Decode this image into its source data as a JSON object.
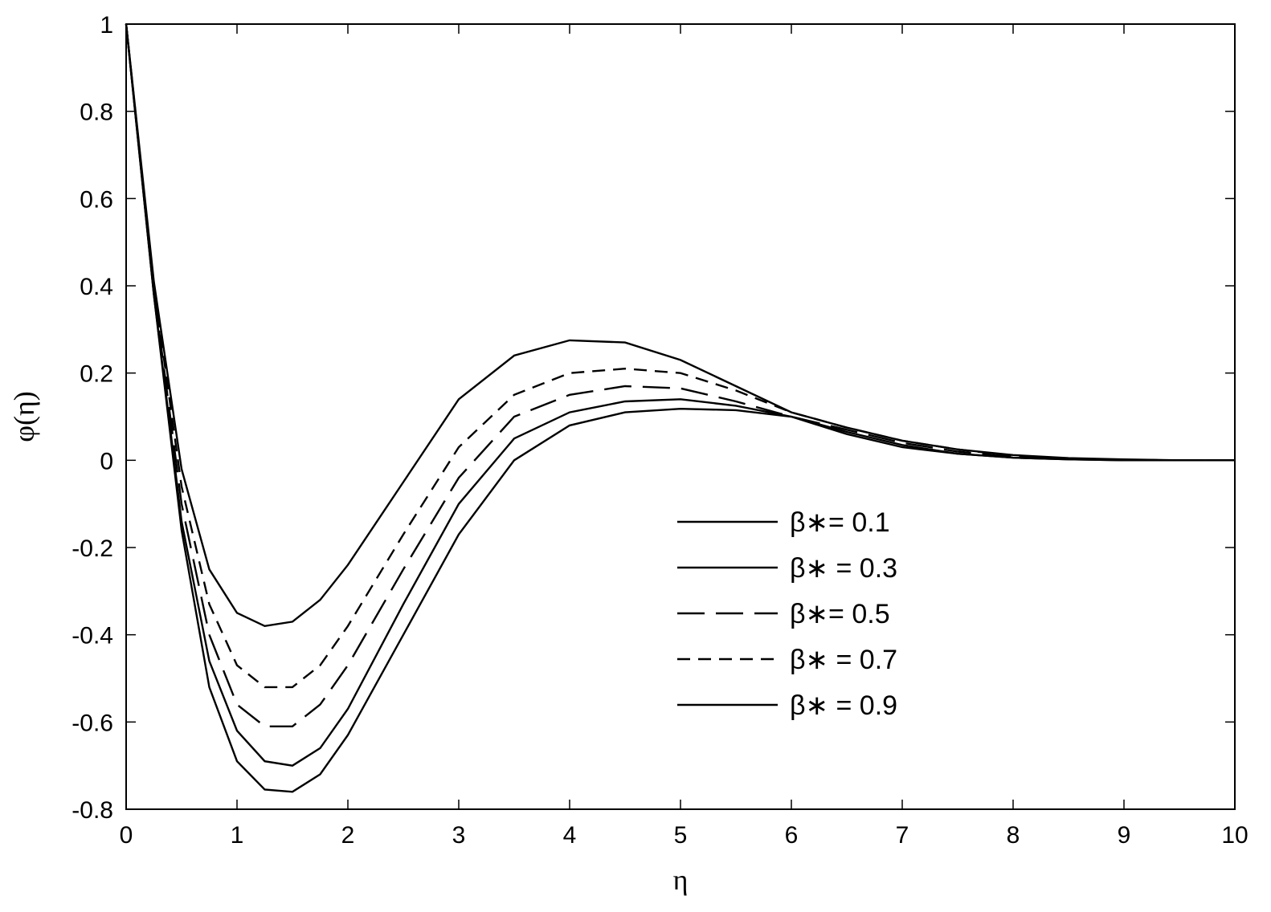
{
  "chart_data": {
    "type": "line",
    "title": "",
    "xlabel": "η",
    "ylabel": "φ(η)",
    "xlim": [
      0,
      10
    ],
    "ylim": [
      -0.8,
      1
    ],
    "xticks": [
      0,
      1,
      2,
      3,
      4,
      5,
      6,
      7,
      8,
      9,
      10
    ],
    "xtick_labels": [
      "0",
      "1",
      "2",
      "3",
      "4",
      "5",
      "6",
      "7",
      "8",
      "9",
      "10"
    ],
    "yticks": [
      -0.8,
      -0.6,
      -0.4,
      -0.2,
      0,
      0.2,
      0.4,
      0.6,
      0.8,
      1
    ],
    "ytick_labels": [
      "-0.8",
      "-0.6",
      "-0.4",
      "-0.2",
      "0",
      "0.2",
      "0.4",
      "0.6",
      "0.8",
      "1"
    ],
    "grid": false,
    "legend_position": "lower-right",
    "colors": {
      "line": "#000000",
      "axes": "#000000",
      "background": "#ffffff"
    },
    "series": [
      {
        "name": "β∗= 0.1",
        "dash": "solid",
        "x": [
          0,
          0.25,
          0.5,
          0.75,
          1.0,
          1.25,
          1.5,
          1.75,
          2.0,
          2.5,
          3.0,
          3.5,
          4.0,
          4.5,
          5.0,
          5.5,
          6.0,
          6.5,
          7.0,
          7.5,
          8.0,
          8.5,
          9.0,
          9.5,
          10.0
        ],
        "y": [
          1.0,
          0.38,
          -0.16,
          -0.52,
          -0.69,
          -0.755,
          -0.76,
          -0.72,
          -0.63,
          -0.4,
          -0.17,
          0.0,
          0.08,
          0.11,
          0.118,
          0.115,
          0.1,
          0.06,
          0.03,
          0.015,
          0.006,
          0.002,
          0.0,
          0.0,
          0.0
        ]
      },
      {
        "name": "β∗ = 0.3",
        "dash": "solid",
        "x": [
          0,
          0.25,
          0.5,
          0.75,
          1.0,
          1.25,
          1.5,
          1.75,
          2.0,
          2.5,
          3.0,
          3.5,
          4.0,
          4.5,
          5.0,
          5.5,
          6.0,
          6.5,
          7.0,
          7.5,
          8.0,
          8.5,
          9.0,
          9.5,
          10.0
        ],
        "y": [
          1.0,
          0.38,
          -0.14,
          -0.46,
          -0.62,
          -0.69,
          -0.7,
          -0.66,
          -0.57,
          -0.33,
          -0.1,
          0.05,
          0.11,
          0.135,
          0.14,
          0.125,
          0.1,
          0.065,
          0.035,
          0.015,
          0.006,
          0.002,
          0.0,
          0.0,
          0.0
        ]
      },
      {
        "name": "β∗= 0.5",
        "dash": "longdash",
        "x": [
          0,
          0.25,
          0.5,
          0.75,
          1.0,
          1.25,
          1.5,
          1.75,
          2.0,
          2.5,
          3.0,
          3.5,
          4.0,
          4.5,
          5.0,
          5.5,
          6.0,
          6.5,
          7.0,
          7.5,
          8.0,
          8.5,
          9.0,
          9.5,
          10.0
        ],
        "y": [
          1.0,
          0.39,
          -0.1,
          -0.4,
          -0.56,
          -0.61,
          -0.61,
          -0.56,
          -0.47,
          -0.25,
          -0.04,
          0.1,
          0.15,
          0.17,
          0.165,
          0.135,
          0.1,
          0.07,
          0.04,
          0.02,
          0.008,
          0.003,
          0.001,
          0.0,
          0.0
        ]
      },
      {
        "name": "β∗ = 0.7",
        "dash": "dash",
        "x": [
          0,
          0.25,
          0.5,
          0.75,
          1.0,
          1.25,
          1.5,
          1.75,
          2.0,
          2.5,
          3.0,
          3.5,
          4.0,
          4.5,
          5.0,
          5.5,
          6.0,
          6.5,
          7.0,
          7.5,
          8.0,
          8.5,
          9.0,
          9.5,
          10.0
        ],
        "y": [
          1.0,
          0.4,
          -0.06,
          -0.33,
          -0.47,
          -0.52,
          -0.52,
          -0.47,
          -0.38,
          -0.17,
          0.03,
          0.15,
          0.2,
          0.21,
          0.2,
          0.16,
          0.11,
          0.075,
          0.045,
          0.025,
          0.01,
          0.004,
          0.001,
          0.0,
          0.0
        ]
      },
      {
        "name": "β∗ = 0.9",
        "dash": "solid",
        "x": [
          0,
          0.25,
          0.5,
          0.75,
          1.0,
          1.25,
          1.5,
          1.75,
          2.0,
          2.5,
          3.0,
          3.5,
          4.0,
          4.5,
          5.0,
          5.5,
          6.0,
          6.5,
          7.0,
          7.5,
          8.0,
          8.5,
          9.0,
          9.5,
          10.0
        ],
        "y": [
          1.0,
          0.41,
          -0.02,
          -0.25,
          -0.35,
          -0.38,
          -0.37,
          -0.32,
          -0.24,
          -0.05,
          0.14,
          0.24,
          0.275,
          0.27,
          0.23,
          0.17,
          0.11,
          0.075,
          0.045,
          0.025,
          0.012,
          0.005,
          0.002,
          0.0,
          0.0
        ]
      }
    ]
  }
}
